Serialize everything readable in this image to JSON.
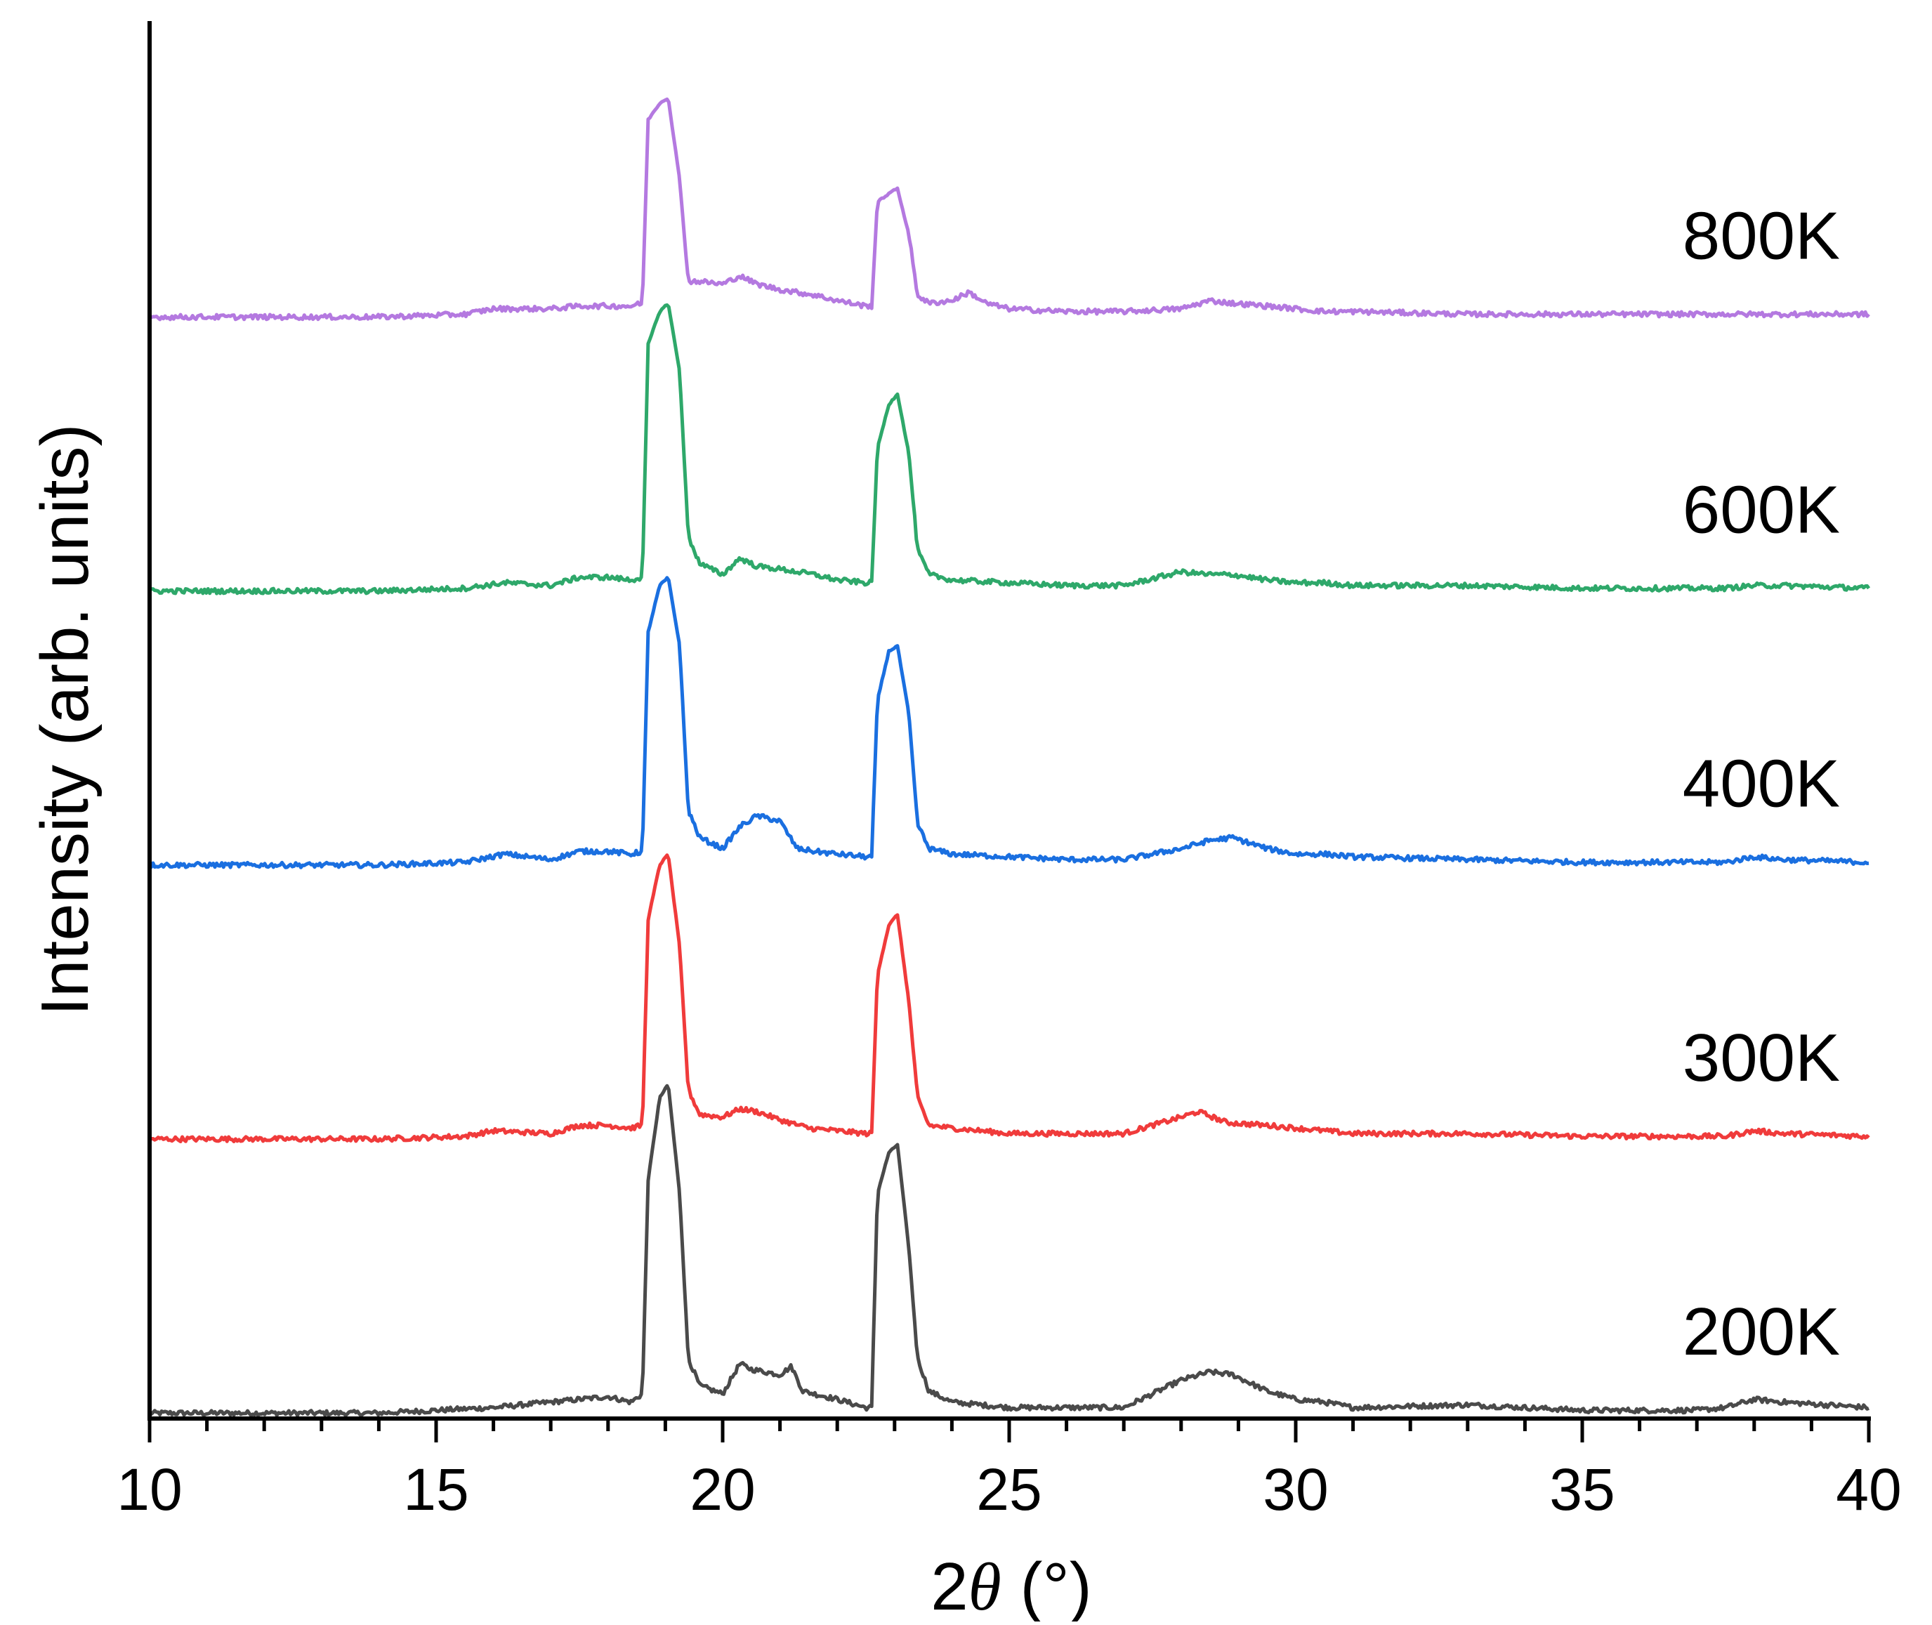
{
  "chart_data": {
    "type": "line",
    "title": "",
    "xlabel": "2θ (°)",
    "xlabel_parts": {
      "prefix": "2",
      "symbol": "θ",
      "suffix": " (°)"
    },
    "ylabel": "Intensity (arb. units)",
    "xlim": [
      10,
      40
    ],
    "ylim": [
      0,
      5.1
    ],
    "x_ticks": [
      10,
      15,
      20,
      25,
      30,
      35,
      40
    ],
    "x_tick_labels": [
      "10",
      "15",
      "20",
      "25",
      "30",
      "35",
      "40"
    ],
    "x_minor_step": 1,
    "y_ticks_visible": false,
    "grid": false,
    "legend": "none (series labeled inline at right)",
    "series": [
      {
        "name": "200K",
        "color": "#4a4a4a",
        "offset": 0.02,
        "label_y": 0.32,
        "x": [
          10,
          12,
          14,
          16,
          17.5,
          18,
          18.4,
          18.6,
          18.7,
          18.9,
          19.05,
          19.25,
          19.4,
          19.6,
          20,
          20.3,
          20.5,
          21,
          21.2,
          21.4,
          22,
          22.5,
          22.6,
          22.7,
          22.9,
          23.05,
          23.25,
          23.4,
          23.6,
          24,
          25,
          26,
          27,
          28,
          28.5,
          28.9,
          29.5,
          30,
          30.5,
          31,
          33,
          35,
          37,
          37.5,
          38,
          38.5,
          40
        ],
        "y": [
          0,
          0,
          0,
          0.02,
          0.05,
          0.06,
          0.04,
          0.07,
          0.85,
          1.15,
          1.2,
          0.8,
          0.2,
          0.1,
          0.07,
          0.18,
          0.16,
          0.14,
          0.17,
          0.08,
          0.05,
          0.02,
          0.02,
          0.8,
          0.95,
          0.98,
          0.6,
          0.2,
          0.08,
          0.04,
          0.02,
          0.02,
          0.02,
          0.12,
          0.15,
          0.14,
          0.08,
          0.05,
          0.04,
          0.02,
          0.03,
          0.01,
          0.01,
          0.02,
          0.05,
          0.04,
          0.02
        ]
      },
      {
        "name": "300K",
        "color": "#f03b3b",
        "offset": 1.02,
        "label_y": 1.32,
        "x": [
          10,
          12,
          14,
          15.5,
          16,
          17,
          17.5,
          18,
          18.4,
          18.6,
          18.7,
          18.9,
          19.05,
          19.25,
          19.4,
          19.6,
          20,
          20.3,
          20.6,
          21,
          21.5,
          22,
          22.5,
          22.6,
          22.7,
          22.9,
          23.05,
          23.25,
          23.4,
          23.6,
          24,
          25,
          26,
          27,
          28,
          28.3,
          28.8,
          29.5,
          30,
          30.5,
          31,
          33,
          35,
          37,
          37.5,
          38,
          38.5,
          40
        ],
        "y": [
          0,
          0,
          0,
          0.01,
          0.03,
          0.02,
          0.05,
          0.05,
          0.04,
          0.05,
          0.8,
          1.0,
          1.04,
          0.7,
          0.18,
          0.09,
          0.08,
          0.11,
          0.1,
          0.07,
          0.04,
          0.03,
          0.02,
          0.02,
          0.6,
          0.78,
          0.82,
          0.5,
          0.15,
          0.05,
          0.04,
          0.02,
          0.02,
          0.02,
          0.08,
          0.1,
          0.06,
          0.05,
          0.04,
          0.03,
          0.02,
          0.02,
          0.01,
          0.01,
          0.01,
          0.03,
          0.02,
          0.01
        ]
      },
      {
        "name": "400K",
        "color": "#1a6fe0",
        "offset": 2.02,
        "label_y": 2.32,
        "x": [
          10,
          12,
          14,
          15.5,
          16.2,
          17,
          17.5,
          18,
          18.4,
          18.6,
          18.7,
          18.9,
          19.05,
          19.25,
          19.4,
          19.6,
          20,
          20.3,
          20.6,
          21,
          21.3,
          21.6,
          22,
          22.5,
          22.6,
          22.7,
          22.9,
          23.05,
          23.25,
          23.4,
          23.6,
          24,
          25,
          26,
          27,
          28,
          28.5,
          28.9,
          29.5,
          30,
          30.5,
          31,
          33,
          35,
          37,
          37.5,
          38,
          38.5,
          40
        ],
        "y": [
          0,
          0,
          0,
          0.01,
          0.04,
          0.02,
          0.05,
          0.05,
          0.04,
          0.05,
          0.85,
          1.02,
          1.05,
          0.8,
          0.2,
          0.1,
          0.06,
          0.14,
          0.18,
          0.16,
          0.06,
          0.05,
          0.04,
          0.03,
          0.03,
          0.6,
          0.78,
          0.8,
          0.55,
          0.15,
          0.06,
          0.04,
          0.03,
          0.02,
          0.02,
          0.06,
          0.09,
          0.1,
          0.06,
          0.04,
          0.04,
          0.03,
          0.02,
          0.01,
          0.01,
          0.01,
          0.03,
          0.02,
          0.01
        ]
      },
      {
        "name": "600K",
        "color": "#2ea86a",
        "offset": 3.02,
        "label_y": 3.32,
        "x": [
          10,
          12,
          14,
          15.5,
          16.2,
          17,
          17.5,
          18,
          18.4,
          18.6,
          18.7,
          18.9,
          19.05,
          19.25,
          19.4,
          19.6,
          20,
          20.3,
          20.6,
          21,
          21.6,
          22,
          22.5,
          22.6,
          22.7,
          22.9,
          23.05,
          23.25,
          23.4,
          23.6,
          24,
          25,
          26,
          27,
          28,
          28.5,
          28.9,
          29.5,
          30,
          30.5,
          31,
          33,
          35,
          37,
          37.5,
          38,
          38.5,
          40
        ],
        "y": [
          0,
          0,
          0,
          0.01,
          0.03,
          0.02,
          0.05,
          0.05,
          0.04,
          0.05,
          0.9,
          1.02,
          1.05,
          0.8,
          0.2,
          0.1,
          0.06,
          0.12,
          0.09,
          0.08,
          0.06,
          0.04,
          0.03,
          0.03,
          0.52,
          0.68,
          0.72,
          0.5,
          0.15,
          0.06,
          0.04,
          0.03,
          0.02,
          0.02,
          0.07,
          0.06,
          0.06,
          0.04,
          0.03,
          0.03,
          0.02,
          0.02,
          0.01,
          0.01,
          0.01,
          0.02,
          0.02,
          0.01
        ]
      },
      {
        "name": "800K",
        "color": "#b479e0",
        "offset": 4.02,
        "label_y": 4.32,
        "x": [
          10,
          12,
          14,
          15.5,
          16,
          17,
          17.5,
          18,
          18.4,
          18.6,
          18.7,
          18.9,
          19.05,
          19.25,
          19.4,
          19.6,
          20,
          20.3,
          20.6,
          21,
          21.6,
          22,
          22.5,
          22.6,
          22.7,
          22.9,
          23.05,
          23.25,
          23.4,
          23.6,
          24,
          24.3,
          24.6,
          25,
          26,
          27,
          28,
          28.5,
          28.9,
          29.5,
          30,
          30.5,
          31,
          33,
          35,
          37,
          38,
          40
        ],
        "y": [
          0,
          0,
          0,
          0.01,
          0.03,
          0.03,
          0.04,
          0.04,
          0.04,
          0.05,
          0.72,
          0.78,
          0.8,
          0.5,
          0.13,
          0.13,
          0.12,
          0.15,
          0.12,
          0.1,
          0.08,
          0.06,
          0.04,
          0.04,
          0.42,
          0.45,
          0.47,
          0.3,
          0.08,
          0.05,
          0.06,
          0.09,
          0.05,
          0.03,
          0.02,
          0.02,
          0.03,
          0.06,
          0.05,
          0.04,
          0.03,
          0.02,
          0.02,
          0.01,
          0.01,
          0.01,
          0.01,
          0.01
        ]
      }
    ]
  }
}
